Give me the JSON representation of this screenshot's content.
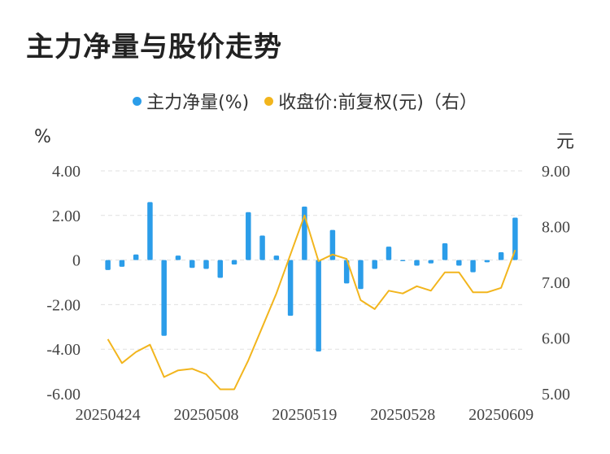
{
  "title": "主力净量与股价走势",
  "legend": {
    "series1": "主力净量(%)",
    "series2": "收盘价:前复权(元)（右）"
  },
  "units": {
    "left": "%",
    "right": "元"
  },
  "colors": {
    "bar": "#2b9de9",
    "line": "#f2b51d",
    "grid": "#e0e0e0"
  },
  "chart_data": {
    "type": "bar+line",
    "x_tick_labels": [
      "20250424",
      "20250508",
      "20250519",
      "20250528",
      "20250609"
    ],
    "y_left": {
      "ticks": [
        "4.00",
        "2.00",
        "0",
        "-2.00",
        "-4.00",
        "-6.00"
      ],
      "range": [
        -6,
        4
      ]
    },
    "y_right": {
      "ticks": [
        "9.00",
        "8.00",
        "7.00",
        "6.00",
        "5.00"
      ],
      "range": [
        5,
        9
      ]
    },
    "series": [
      {
        "name": "主力净量(%)",
        "type": "bar",
        "values": [
          -0.45,
          -0.3,
          0.25,
          2.6,
          -3.4,
          0.2,
          -0.35,
          -0.4,
          -0.8,
          -0.2,
          2.15,
          1.1,
          0.2,
          -2.5,
          2.4,
          -4.1,
          1.35,
          -1.05,
          -1.3,
          -0.4,
          0.6,
          -0.05,
          -0.25,
          -0.15,
          0.75,
          -0.25,
          -0.55,
          -0.1,
          0.35,
          1.9
        ]
      },
      {
        "name": "收盘价:前复权(元)（右）",
        "type": "line",
        "values": [
          5.98,
          5.55,
          5.75,
          5.88,
          5.3,
          5.42,
          5.45,
          5.35,
          5.08,
          5.08,
          5.6,
          6.2,
          6.8,
          7.5,
          8.2,
          7.38,
          7.5,
          7.42,
          6.68,
          6.52,
          6.85,
          6.8,
          6.93,
          6.85,
          7.18,
          7.18,
          6.82,
          6.82,
          6.9,
          7.58
        ]
      }
    ]
  }
}
